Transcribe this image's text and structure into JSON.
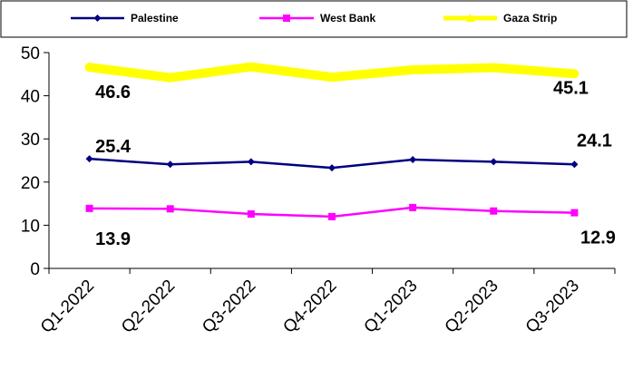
{
  "chart_data": {
    "type": "line",
    "categories": [
      "Q1-2022",
      "Q2-2022",
      "Q3-2022",
      "Q4-2022",
      "Q1-2023",
      "Q2-2023",
      "Q3-2023"
    ],
    "series": [
      {
        "name": "Palestine",
        "color": "#000080",
        "marker": "diamond",
        "values": [
          25.4,
          24.1,
          24.7,
          23.3,
          25.2,
          24.7,
          24.1
        ]
      },
      {
        "name": "West Bank",
        "color": "#FF00FF",
        "marker": "square",
        "values": [
          13.9,
          13.8,
          12.6,
          12.0,
          14.1,
          13.3,
          12.9
        ]
      },
      {
        "name": "Gaza Strip",
        "color": "#FFFF00",
        "marker": "triangle",
        "values": [
          46.6,
          44.2,
          46.7,
          44.3,
          46.0,
          46.5,
          45.1
        ]
      }
    ],
    "data_labels": [
      {
        "series": 2,
        "index": 0,
        "text": "46.6"
      },
      {
        "series": 2,
        "index": 6,
        "text": "45.1"
      },
      {
        "series": 0,
        "index": 0,
        "text": "25.4"
      },
      {
        "series": 0,
        "index": 6,
        "text": "24.1"
      },
      {
        "series": 1,
        "index": 0,
        "text": "13.9"
      },
      {
        "series": 1,
        "index": 6,
        "text": "12.9"
      }
    ],
    "ylim": [
      0,
      50
    ],
    "yticks": [
      0,
      10,
      20,
      30,
      40,
      50
    ],
    "grid": false,
    "legend": "top",
    "title": "",
    "xlabel": "",
    "ylabel": ""
  }
}
